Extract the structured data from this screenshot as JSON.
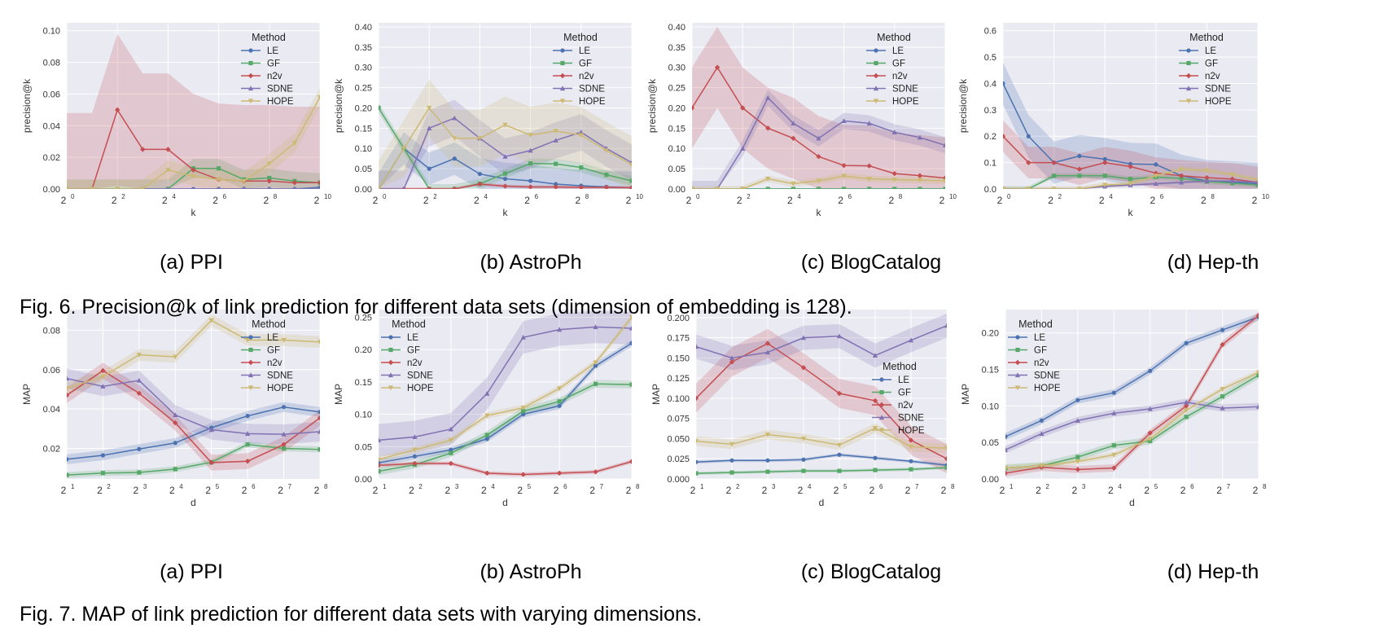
{
  "colors": {
    "panel_bg": "#EAEAF2",
    "grid": "#FFFFFF",
    "LE": "#4C72B0",
    "GF": "#55A868",
    "n2v": "#C44E52",
    "SDNE": "#8172B2",
    "HOPE": "#CCB974"
  },
  "fig6": {
    "caption": "Fig. 6. Precision@k of link prediction for different data sets (dimension of embedding is 128).",
    "subcaptions": [
      "(a) PPI",
      "(b) AstroPh",
      "(c) BlogCatalog",
      "(d) Hep-th"
    ]
  },
  "fig7": {
    "caption": "Fig. 7. MAP of link prediction for different data sets with varying dimensions.",
    "subcaptions": [
      "(a) PPI",
      "(b) AstroPh",
      "(c) BlogCatalog",
      "(d) Hep-th"
    ]
  },
  "chart_data": [
    {
      "id": "fig6a",
      "type": "line",
      "title": "(a) PPI",
      "xlabel": "k",
      "ylabel": "precision@k",
      "x_log2": [
        0,
        1,
        2,
        3,
        4,
        5,
        6,
        7,
        8,
        9,
        10
      ],
      "xlim_log2": [
        0,
        10
      ],
      "xticks_log2": [
        0,
        2,
        4,
        6,
        8,
        10
      ],
      "xtick_labels": [
        "0",
        "2",
        "4",
        "6",
        "8",
        "10"
      ],
      "x_base": "2",
      "ylim": [
        0,
        0.105
      ],
      "yticks": [
        0,
        0.02,
        0.04,
        0.06,
        0.08,
        0.1
      ],
      "ytick_labels": [
        "0.00",
        "0.02",
        "0.04",
        "0.06",
        "0.08",
        "0.10"
      ],
      "legend_title": "Method",
      "legend_position": "top-right",
      "series": [
        {
          "name": "LE",
          "values": [
            0,
            0,
            0,
            0,
            0,
            0,
            0,
            0,
            0,
            0,
            0.001
          ],
          "band": 0
        },
        {
          "name": "GF",
          "values": [
            0,
            0,
            0,
            0,
            0,
            0.013,
            0.013,
            0.006,
            0.007,
            0.005,
            0.004
          ],
          "band": 0.006
        },
        {
          "name": "n2v",
          "values": [
            0,
            0,
            0.05,
            0.025,
            0.025,
            0.012,
            0.006,
            0.005,
            0.005,
            0.004,
            0.004
          ],
          "band": 0.048
        },
        {
          "name": "SDNE",
          "values": [
            0,
            0,
            0,
            0,
            0,
            0,
            0,
            0,
            0,
            0,
            0
          ],
          "band": 0
        },
        {
          "name": "HOPE",
          "values": [
            0,
            0,
            0,
            0,
            0.012,
            0.008,
            0.006,
            0.005,
            0.016,
            0.029,
            0.058
          ],
          "band": 0.006
        }
      ]
    },
    {
      "id": "fig6b",
      "type": "line",
      "title": "(b) AstroPh",
      "xlabel": "k",
      "ylabel": "precision@k",
      "x_log2": [
        0,
        1,
        2,
        3,
        4,
        5,
        6,
        7,
        8,
        9,
        10
      ],
      "xlim_log2": [
        0,
        10
      ],
      "xticks_log2": [
        0,
        2,
        4,
        6,
        8,
        10
      ],
      "xtick_labels": [
        "0",
        "2",
        "4",
        "6",
        "8",
        "10"
      ],
      "x_base": "2",
      "ylim": [
        0,
        0.41
      ],
      "yticks": [
        0,
        0.05,
        0.1,
        0.15,
        0.2,
        0.25,
        0.3,
        0.35,
        0.4
      ],
      "ytick_labels": [
        "0.00",
        "0.05",
        "0.10",
        "0.15",
        "0.20",
        "0.25",
        "0.30",
        "0.35",
        "0.40"
      ],
      "legend_title": "Method",
      "legend_position": "top-right",
      "series": [
        {
          "name": "LE",
          "values": [
            0,
            0.1,
            0.05,
            0.075,
            0.037,
            0.025,
            0.02,
            0.012,
            0.008,
            0.005,
            0.003
          ],
          "band": 0.04
        },
        {
          "name": "GF",
          "values": [
            0.2,
            0.1,
            0,
            0,
            0.013,
            0.038,
            0.063,
            0.062,
            0.053,
            0.035,
            0.02
          ],
          "band": 0.012
        },
        {
          "name": "n2v",
          "values": [
            0,
            0,
            0,
            0,
            0.012,
            0.007,
            0.005,
            0.005,
            0.004,
            0.004,
            0.003
          ],
          "band": 0.004
        },
        {
          "name": "SDNE",
          "values": [
            0,
            0,
            0.15,
            0.175,
            0.125,
            0.08,
            0.095,
            0.12,
            0.14,
            0.1,
            0.065
          ],
          "band": 0.045
        },
        {
          "name": "HOPE",
          "values": [
            0,
            0.1,
            0.2,
            0.125,
            0.125,
            0.158,
            0.133,
            0.143,
            0.133,
            0.095,
            0.06
          ],
          "band": 0.07
        }
      ]
    },
    {
      "id": "fig6c",
      "type": "line",
      "title": "(c) BlogCatalog",
      "xlabel": "k",
      "ylabel": "precision@k",
      "x_log2": [
        0,
        1,
        2,
        3,
        4,
        5,
        6,
        7,
        8,
        9,
        10
      ],
      "xlim_log2": [
        0,
        10
      ],
      "xticks_log2": [
        0,
        2,
        4,
        6,
        8,
        10
      ],
      "xtick_labels": [
        "0",
        "2",
        "4",
        "6",
        "8",
        "10"
      ],
      "x_base": "2",
      "ylim": [
        0,
        0.41
      ],
      "yticks": [
        0,
        0.05,
        0.1,
        0.15,
        0.2,
        0.25,
        0.3,
        0.35,
        0.4
      ],
      "ytick_labels": [
        "0.00",
        "0.05",
        "0.10",
        "0.15",
        "0.20",
        "0.25",
        "0.30",
        "0.35",
        "0.40"
      ],
      "legend_title": "Method",
      "legend_position": "top-right",
      "series": [
        {
          "name": "LE",
          "values": [
            0,
            0,
            0,
            0,
            0,
            0,
            0,
            0,
            0,
            0,
            0
          ],
          "band": 0
        },
        {
          "name": "GF",
          "values": [
            0,
            0,
            0,
            0,
            0,
            0,
            0,
            0,
            0,
            0,
            0
          ],
          "band": 0
        },
        {
          "name": "n2v",
          "values": [
            0.2,
            0.3,
            0.2,
            0.15,
            0.125,
            0.08,
            0.058,
            0.057,
            0.038,
            0.033,
            0.027
          ],
          "band": 0.1
        },
        {
          "name": "SDNE",
          "values": [
            0,
            0,
            0.1,
            0.225,
            0.162,
            0.125,
            0.168,
            0.162,
            0.14,
            0.127,
            0.108
          ],
          "band": 0.02
        },
        {
          "name": "HOPE",
          "values": [
            0,
            0,
            0,
            0.025,
            0.013,
            0.02,
            0.032,
            0.025,
            0.023,
            0.022,
            0.02
          ],
          "band": 0.008
        }
      ]
    },
    {
      "id": "fig6d",
      "type": "line",
      "title": "(d) Hep-th",
      "xlabel": "k",
      "ylabel": "precision@k",
      "x_log2": [
        0,
        1,
        2,
        3,
        4,
        5,
        6,
        7,
        8,
        9,
        10
      ],
      "xlim_log2": [
        0,
        10
      ],
      "xticks_log2": [
        0,
        2,
        4,
        6,
        8,
        10
      ],
      "xtick_labels": [
        "0",
        "2",
        "4",
        "6",
        "8",
        "10"
      ],
      "x_base": "2",
      "ylim": [
        0,
        0.63
      ],
      "yticks": [
        0,
        0.1,
        0.2,
        0.3,
        0.4,
        0.5,
        0.6
      ],
      "ytick_labels": [
        "0.0",
        "0.1",
        "0.2",
        "0.3",
        "0.4",
        "0.5",
        "0.6"
      ],
      "legend_title": "Method",
      "legend_position": "top-right",
      "series": [
        {
          "name": "LE",
          "values": [
            0.4,
            0.2,
            0.1,
            0.125,
            0.113,
            0.095,
            0.093,
            0.05,
            0.03,
            0.025,
            0.02
          ],
          "band": 0.08
        },
        {
          "name": "GF",
          "values": [
            0,
            0,
            0.05,
            0.05,
            0.05,
            0.038,
            0.045,
            0.04,
            0.028,
            0.022,
            0.015
          ],
          "band": 0.01
        },
        {
          "name": "n2v",
          "values": [
            0.2,
            0.1,
            0.1,
            0.075,
            0.1,
            0.085,
            0.06,
            0.05,
            0.043,
            0.038,
            0.025
          ],
          "band": 0.06
        },
        {
          "name": "SDNE",
          "values": [
            0,
            0,
            0,
            0,
            0.01,
            0.015,
            0.02,
            0.025,
            0.03,
            0.03,
            0.025
          ],
          "band": 0.005
        },
        {
          "name": "HOPE",
          "values": [
            0,
            0,
            0,
            0,
            0.015,
            0.02,
            0.05,
            0.075,
            0.07,
            0.055,
            0.035
          ],
          "band": 0.01
        }
      ]
    },
    {
      "id": "fig7a",
      "type": "line",
      "title": "(a) PPI",
      "xlabel": "d",
      "ylabel": "MAP",
      "x_log2": [
        1,
        2,
        3,
        4,
        5,
        6,
        7,
        8
      ],
      "xlim_log2": [
        1,
        8
      ],
      "xticks_log2": [
        1,
        2,
        3,
        4,
        5,
        6,
        7,
        8
      ],
      "xtick_labels": [
        "1",
        "2",
        "3",
        "4",
        "5",
        "6",
        "7",
        "8"
      ],
      "x_base": "2",
      "ylim": [
        0.0045,
        0.0905
      ],
      "yticks": [
        0.02,
        0.04,
        0.06,
        0.08
      ],
      "ytick_labels": [
        "0.02",
        "0.04",
        "0.06",
        "0.08"
      ],
      "legend_title": "Method",
      "legend_position": "top-right",
      "series": [
        {
          "name": "LE",
          "values": [
            0.0145,
            0.0165,
            0.0197,
            0.0228,
            0.0305,
            0.0365,
            0.041,
            0.0385
          ],
          "band": 0.0025
        },
        {
          "name": "GF",
          "values": [
            0.0065,
            0.0075,
            0.0078,
            0.0095,
            0.013,
            0.022,
            0.02,
            0.0195
          ],
          "band": 0.0015
        },
        {
          "name": "n2v",
          "values": [
            0.047,
            0.0595,
            0.048,
            0.033,
            0.0128,
            0.0135,
            0.022,
            0.0355
          ],
          "band": 0.004
        },
        {
          "name": "SDNE",
          "values": [
            0.0555,
            0.0515,
            0.0545,
            0.037,
            0.0295,
            0.0275,
            0.0272,
            0.0285
          ],
          "band": 0.005
        },
        {
          "name": "HOPE",
          "values": [
            0.0505,
            0.0565,
            0.0675,
            0.0665,
            0.085,
            0.075,
            0.075,
            0.074
          ],
          "band": 0.003
        }
      ]
    },
    {
      "id": "fig7b",
      "type": "line",
      "title": "(b) AstroPh",
      "xlabel": "d",
      "ylabel": "MAP",
      "x_log2": [
        1,
        2,
        3,
        4,
        5,
        6,
        7,
        8
      ],
      "xlim_log2": [
        1,
        8
      ],
      "xticks_log2": [
        1,
        2,
        3,
        4,
        5,
        6,
        7,
        8
      ],
      "xtick_labels": [
        "1",
        "2",
        "3",
        "4",
        "5",
        "6",
        "7",
        "8"
      ],
      "x_base": "2",
      "ylim": [
        0,
        0.262
      ],
      "yticks": [
        0,
        0.05,
        0.1,
        0.15,
        0.2,
        0.25
      ],
      "ytick_labels": [
        "0.00",
        "0.05",
        "0.10",
        "0.15",
        "0.20",
        "0.25"
      ],
      "legend_title": "Method",
      "legend_position": "top-left",
      "series": [
        {
          "name": "LE",
          "values": [
            0.025,
            0.035,
            0.045,
            0.062,
            0.1,
            0.113,
            0.175,
            0.21
          ],
          "band": 0.005
        },
        {
          "name": "GF",
          "values": [
            0.012,
            0.022,
            0.04,
            0.068,
            0.105,
            0.12,
            0.147,
            0.146
          ],
          "band": 0.006
        },
        {
          "name": "n2v",
          "values": [
            0.021,
            0.024,
            0.024,
            0.009,
            0.007,
            0.009,
            0.011,
            0.027
          ],
          "band": 0.003
        },
        {
          "name": "SDNE",
          "values": [
            0.06,
            0.065,
            0.077,
            0.132,
            0.219,
            0.231,
            0.235,
            0.233
          ],
          "band": 0.025
        },
        {
          "name": "HOPE",
          "values": [
            0.03,
            0.045,
            0.06,
            0.098,
            0.11,
            0.14,
            0.18,
            0.25
          ],
          "band": 0.005
        }
      ]
    },
    {
      "id": "fig7c",
      "type": "line",
      "title": "(c) BlogCatalog",
      "xlabel": "d",
      "ylabel": "MAP",
      "x_log2": [
        1,
        2,
        3,
        4,
        5,
        6,
        7,
        8
      ],
      "xlim_log2": [
        1,
        8
      ],
      "xticks_log2": [
        1,
        2,
        3,
        4,
        5,
        6,
        7,
        8
      ],
      "xtick_labels": [
        "1",
        "2",
        "3",
        "4",
        "5",
        "6",
        "7",
        "8"
      ],
      "x_base": "2",
      "ylim": [
        0,
        0.21
      ],
      "yticks": [
        0,
        0.025,
        0.05,
        0.075,
        0.1,
        0.125,
        0.15,
        0.175,
        0.2
      ],
      "ytick_labels": [
        "0.000",
        "0.025",
        "0.050",
        "0.075",
        "0.100",
        "0.125",
        "0.150",
        "0.175",
        "0.200"
      ],
      "legend_title": "Method",
      "legend_position": "center-right",
      "series": [
        {
          "name": "LE",
          "values": [
            0.021,
            0.023,
            0.023,
            0.024,
            0.03,
            0.026,
            0.022,
            0.017
          ],
          "band": 0.002
        },
        {
          "name": "GF",
          "values": [
            0.007,
            0.008,
            0.009,
            0.01,
            0.01,
            0.011,
            0.012,
            0.014
          ],
          "band": 0.002
        },
        {
          "name": "n2v",
          "values": [
            0.1,
            0.145,
            0.168,
            0.138,
            0.106,
            0.097,
            0.048,
            0.025
          ],
          "band": 0.018
        },
        {
          "name": "SDNE",
          "values": [
            0.164,
            0.15,
            0.157,
            0.175,
            0.177,
            0.153,
            0.172,
            0.19
          ],
          "band": 0.015
        },
        {
          "name": "HOPE",
          "values": [
            0.047,
            0.043,
            0.055,
            0.05,
            0.042,
            0.063,
            0.04,
            0.038
          ],
          "band": 0.006
        }
      ]
    },
    {
      "id": "fig7d",
      "type": "line",
      "title": "(d) Hep-th",
      "xlabel": "d",
      "ylabel": "MAP",
      "x_log2": [
        1,
        2,
        3,
        4,
        5,
        6,
        7,
        8
      ],
      "xlim_log2": [
        1,
        8
      ],
      "xticks_log2": [
        1,
        2,
        3,
        4,
        5,
        6,
        7,
        8
      ],
      "xtick_labels": [
        "1",
        "2",
        "3",
        "4",
        "5",
        "6",
        "7",
        "8"
      ],
      "x_base": "2",
      "ylim": [
        0,
        0.232
      ],
      "yticks": [
        0,
        0.05,
        0.1,
        0.15,
        0.2
      ],
      "ytick_labels": [
        "0.00",
        "0.05",
        "0.10",
        "0.15",
        "0.20"
      ],
      "legend_title": "Method",
      "legend_position": "top-left",
      "series": [
        {
          "name": "LE",
          "values": [
            0.058,
            0.08,
            0.108,
            0.118,
            0.148,
            0.186,
            0.204,
            0.222
          ],
          "band": 0.005
        },
        {
          "name": "GF",
          "values": [
            0.015,
            0.018,
            0.03,
            0.046,
            0.052,
            0.085,
            0.113,
            0.142
          ],
          "band": 0.005
        },
        {
          "name": "n2v",
          "values": [
            0.008,
            0.016,
            0.013,
            0.015,
            0.063,
            0.1,
            0.184,
            0.224
          ],
          "band": 0.005
        },
        {
          "name": "SDNE",
          "values": [
            0.04,
            0.062,
            0.08,
            0.09,
            0.096,
            0.105,
            0.097,
            0.099
          ],
          "band": 0.005
        },
        {
          "name": "HOPE",
          "values": [
            0.015,
            0.018,
            0.024,
            0.033,
            0.055,
            0.094,
            0.123,
            0.146
          ],
          "band": 0.004
        }
      ]
    }
  ]
}
